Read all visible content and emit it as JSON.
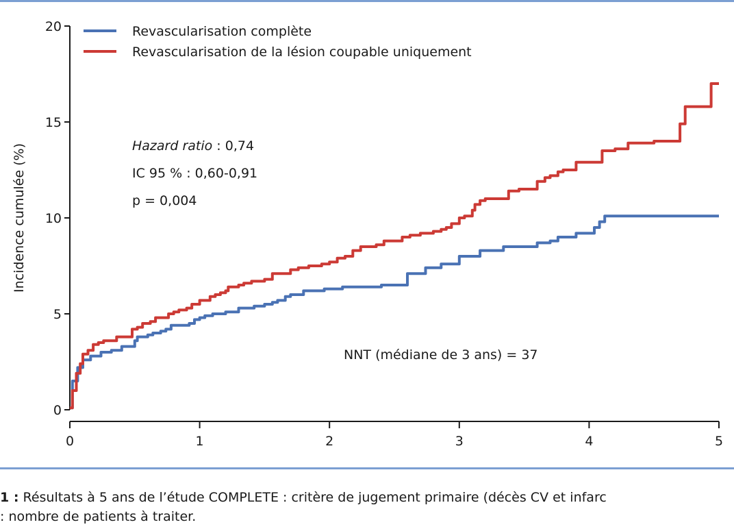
{
  "chart_data": {
    "type": "line",
    "ylabel": "Incidence cumulée (%)",
    "xlim": [
      0,
      5
    ],
    "ylim": [
      0,
      20
    ],
    "x_ticks": [
      "0",
      "1",
      "2",
      "3",
      "4",
      "5"
    ],
    "y_ticks": [
      "0",
      "5",
      "10",
      "15",
      "20"
    ],
    "grid": false,
    "legend_position": "top-left",
    "series": [
      {
        "name": "Revascularisation complète",
        "color": "#4a72b4",
        "points": [
          [
            0,
            0.1
          ],
          [
            0.02,
            1.5
          ],
          [
            0.06,
            2.2
          ],
          [
            0.1,
            2.6
          ],
          [
            0.16,
            2.8
          ],
          [
            0.24,
            3.0
          ],
          [
            0.32,
            3.1
          ],
          [
            0.4,
            3.3
          ],
          [
            0.44,
            3.3
          ],
          [
            0.5,
            3.6
          ],
          [
            0.52,
            3.8
          ],
          [
            0.6,
            3.9
          ],
          [
            0.64,
            4.0
          ],
          [
            0.7,
            4.1
          ],
          [
            0.74,
            4.2
          ],
          [
            0.78,
            4.4
          ],
          [
            0.84,
            4.4
          ],
          [
            0.92,
            4.5
          ],
          [
            0.96,
            4.7
          ],
          [
            1.0,
            4.8
          ],
          [
            1.04,
            4.9
          ],
          [
            1.1,
            5.0
          ],
          [
            1.2,
            5.1
          ],
          [
            1.3,
            5.3
          ],
          [
            1.42,
            5.4
          ],
          [
            1.5,
            5.5
          ],
          [
            1.56,
            5.6
          ],
          [
            1.6,
            5.7
          ],
          [
            1.66,
            5.9
          ],
          [
            1.7,
            6.0
          ],
          [
            1.74,
            6.0
          ],
          [
            1.8,
            6.2
          ],
          [
            1.9,
            6.2
          ],
          [
            1.96,
            6.3
          ],
          [
            2.0,
            6.3
          ],
          [
            2.1,
            6.4
          ],
          [
            2.2,
            6.4
          ],
          [
            2.4,
            6.5
          ],
          [
            2.6,
            7.1
          ],
          [
            2.74,
            7.4
          ],
          [
            2.8,
            7.4
          ],
          [
            2.86,
            7.6
          ],
          [
            2.94,
            7.6
          ],
          [
            3.0,
            8.0
          ],
          [
            3.1,
            8.0
          ],
          [
            3.16,
            8.3
          ],
          [
            3.3,
            8.3
          ],
          [
            3.34,
            8.5
          ],
          [
            3.5,
            8.5
          ],
          [
            3.6,
            8.7
          ],
          [
            3.7,
            8.8
          ],
          [
            3.76,
            9.0
          ],
          [
            3.86,
            9.0
          ],
          [
            3.9,
            9.2
          ],
          [
            4.0,
            9.2
          ],
          [
            4.04,
            9.5
          ],
          [
            4.08,
            9.8
          ],
          [
            4.12,
            10.1
          ],
          [
            4.3,
            10.1
          ],
          [
            5.0,
            10.1
          ]
        ]
      },
      {
        "name": "Revascularisation de la lésion coupable uniquement",
        "color": "#cc3a35",
        "points": [
          [
            0,
            0.1
          ],
          [
            0.02,
            1.0
          ],
          [
            0.05,
            1.9
          ],
          [
            0.08,
            2.4
          ],
          [
            0.1,
            2.9
          ],
          [
            0.14,
            3.1
          ],
          [
            0.18,
            3.4
          ],
          [
            0.22,
            3.5
          ],
          [
            0.26,
            3.6
          ],
          [
            0.32,
            3.6
          ],
          [
            0.36,
            3.8
          ],
          [
            0.44,
            3.8
          ],
          [
            0.48,
            4.2
          ],
          [
            0.52,
            4.3
          ],
          [
            0.56,
            4.5
          ],
          [
            0.62,
            4.6
          ],
          [
            0.66,
            4.8
          ],
          [
            0.72,
            4.8
          ],
          [
            0.76,
            5.0
          ],
          [
            0.8,
            5.1
          ],
          [
            0.84,
            5.2
          ],
          [
            0.9,
            5.3
          ],
          [
            0.94,
            5.5
          ],
          [
            1.0,
            5.7
          ],
          [
            1.08,
            5.9
          ],
          [
            1.12,
            6.0
          ],
          [
            1.16,
            6.1
          ],
          [
            1.2,
            6.2
          ],
          [
            1.22,
            6.4
          ],
          [
            1.3,
            6.5
          ],
          [
            1.34,
            6.6
          ],
          [
            1.4,
            6.7
          ],
          [
            1.5,
            6.8
          ],
          [
            1.56,
            7.1
          ],
          [
            1.62,
            7.1
          ],
          [
            1.7,
            7.3
          ],
          [
            1.76,
            7.4
          ],
          [
            1.84,
            7.5
          ],
          [
            1.94,
            7.6
          ],
          [
            2.0,
            7.7
          ],
          [
            2.06,
            7.9
          ],
          [
            2.12,
            8.0
          ],
          [
            2.18,
            8.3
          ],
          [
            2.24,
            8.5
          ],
          [
            2.3,
            8.5
          ],
          [
            2.36,
            8.6
          ],
          [
            2.42,
            8.8
          ],
          [
            2.5,
            8.8
          ],
          [
            2.56,
            9.0
          ],
          [
            2.62,
            9.1
          ],
          [
            2.7,
            9.2
          ],
          [
            2.74,
            9.2
          ],
          [
            2.8,
            9.3
          ],
          [
            2.86,
            9.4
          ],
          [
            2.9,
            9.5
          ],
          [
            2.94,
            9.7
          ],
          [
            3.0,
            10.0
          ],
          [
            3.04,
            10.1
          ],
          [
            3.1,
            10.4
          ],
          [
            3.12,
            10.7
          ],
          [
            3.16,
            10.9
          ],
          [
            3.2,
            11.0
          ],
          [
            3.3,
            11.0
          ],
          [
            3.38,
            11.4
          ],
          [
            3.46,
            11.5
          ],
          [
            3.56,
            11.5
          ],
          [
            3.6,
            11.9
          ],
          [
            3.66,
            12.1
          ],
          [
            3.7,
            12.2
          ],
          [
            3.76,
            12.4
          ],
          [
            3.8,
            12.5
          ],
          [
            3.86,
            12.5
          ],
          [
            3.9,
            12.9
          ],
          [
            4.0,
            12.9
          ],
          [
            4.1,
            13.5
          ],
          [
            4.2,
            13.6
          ],
          [
            4.3,
            13.9
          ],
          [
            4.5,
            14.0
          ],
          [
            4.6,
            14.0
          ],
          [
            4.7,
            14.9
          ],
          [
            4.74,
            15.8
          ],
          [
            4.8,
            15.8
          ],
          [
            4.94,
            17.0
          ],
          [
            5.0,
            17.0
          ]
        ]
      }
    ],
    "annotations": {
      "hazard_label": "Hazard ratio",
      "hazard_value": " : 0,74",
      "ci": "IC 95 % : 0,60-0,91",
      "p": "p = 0,004",
      "nnt": "NNT (médiane de 3 ans) = 37"
    }
  },
  "caption": {
    "label": "1 :",
    "line1": " Résultats à 5 ans de l’étude COMPLETE : critère de jugement primaire (décès CV et infarc",
    "line2": ": nombre de patients à traiter."
  }
}
